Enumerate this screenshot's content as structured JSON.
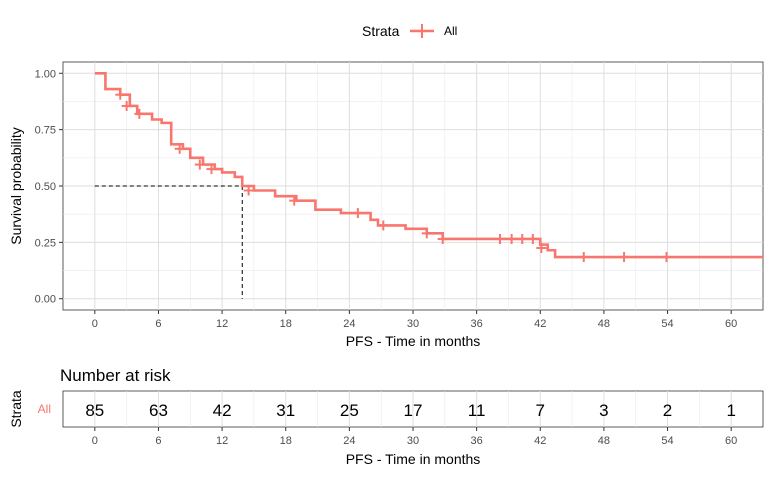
{
  "chart_data": [
    {
      "type": "line",
      "subtype": "kaplan-meier",
      "legend": {
        "title": "Strata",
        "position": "top",
        "entries": [
          "All"
        ]
      },
      "xlabel": "PFS - Time in months",
      "ylabel": "Survival probability",
      "xlim": [
        -3,
        63
      ],
      "ylim": [
        -0.05,
        1.05
      ],
      "x_ticks": [
        0,
        6,
        12,
        18,
        24,
        30,
        36,
        42,
        48,
        54,
        60
      ],
      "y_ticks": [
        0,
        0.25,
        0.5,
        0.75,
        1.0
      ],
      "y_tick_labels": [
        "0.00",
        "0.25",
        "0.50",
        "0.75",
        "1.00"
      ],
      "grid": true,
      "median": {
        "x": 13.9,
        "y": 0.5,
        "linestyle": "dashed"
      },
      "series": [
        {
          "name": "All",
          "color": "#F8766D",
          "steps": [
            [
              0,
              1.0
            ],
            [
              1,
              0.93
            ],
            [
              2.4,
              0.905
            ],
            [
              3.3,
              0.855
            ],
            [
              4,
              0.82
            ],
            [
              5.4,
              0.795
            ],
            [
              6.3,
              0.78
            ],
            [
              7.2,
              0.685
            ],
            [
              8.3,
              0.665
            ],
            [
              9,
              0.625
            ],
            [
              10.2,
              0.595
            ],
            [
              11.3,
              0.575
            ],
            [
              12,
              0.56
            ],
            [
              13.2,
              0.54
            ],
            [
              13.9,
              0.5
            ],
            [
              15,
              0.48
            ],
            [
              17,
              0.455
            ],
            [
              19,
              0.435
            ],
            [
              20.8,
              0.395
            ],
            [
              23.2,
              0.38
            ],
            [
              26,
              0.35
            ],
            [
              26.7,
              0.325
            ],
            [
              29.3,
              0.31
            ],
            [
              31.3,
              0.29
            ],
            [
              32.8,
              0.265
            ],
            [
              42,
              0.24
            ],
            [
              42.7,
              0.215
            ],
            [
              43.4,
              0.185
            ],
            [
              63,
              0.185
            ]
          ],
          "censored": [
            [
              2.4,
              0.905
            ],
            [
              3,
              0.855
            ],
            [
              4.2,
              0.82
            ],
            [
              8,
              0.665
            ],
            [
              9.9,
              0.595
            ],
            [
              11,
              0.575
            ],
            [
              14.5,
              0.48
            ],
            [
              18.8,
              0.435
            ],
            [
              24.8,
              0.38
            ],
            [
              27.2,
              0.325
            ],
            [
              31.3,
              0.29
            ],
            [
              32.8,
              0.265
            ],
            [
              38.2,
              0.265
            ],
            [
              39.3,
              0.265
            ],
            [
              40.3,
              0.265
            ],
            [
              41.3,
              0.265
            ],
            [
              42.1,
              0.225
            ],
            [
              46.1,
              0.185
            ],
            [
              49.9,
              0.185
            ],
            [
              53.9,
              0.185
            ]
          ]
        }
      ]
    },
    {
      "type": "table",
      "title": "Number at risk",
      "ylabel": "Strata",
      "xlabel": "PFS - Time in months",
      "row_labels": [
        "All"
      ],
      "x": [
        0,
        6,
        12,
        18,
        24,
        30,
        36,
        42,
        48,
        54,
        60
      ],
      "values": [
        85,
        63,
        42,
        31,
        25,
        17,
        11,
        7,
        3,
        2,
        1
      ]
    }
  ]
}
